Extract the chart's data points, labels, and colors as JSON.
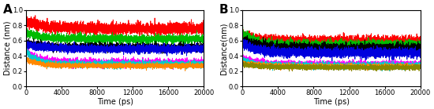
{
  "title_A": "A",
  "title_B": "B",
  "xlabel": "Time (ps)",
  "ylabel_A": "Distance (nm)",
  "ylabel_B": "Distance(nm)",
  "xlim": [
    0,
    20000
  ],
  "ylim": [
    0.0,
    1.0
  ],
  "yticks": [
    0.0,
    0.2,
    0.4,
    0.6,
    0.8,
    1.0
  ],
  "xticks": [
    0,
    4000,
    8000,
    12000,
    16000,
    20000
  ],
  "panel_A": {
    "lines": [
      {
        "mean": 0.76,
        "std": 0.07,
        "color": "#ff0000",
        "lw": 0.6
      },
      {
        "mean": 0.62,
        "std": 0.05,
        "color": "#00bb00",
        "lw": 0.6
      },
      {
        "mean": 0.51,
        "std": 0.05,
        "color": "#000000",
        "lw": 0.6
      },
      {
        "mean": 0.49,
        "std": 0.05,
        "color": "#0000dd",
        "lw": 0.6
      },
      {
        "mean": 0.31,
        "std": 0.05,
        "color": "#ff00ff",
        "lw": 0.6
      },
      {
        "mean": 0.29,
        "std": 0.04,
        "color": "#00cccc",
        "lw": 0.6
      },
      {
        "mean": 0.27,
        "std": 0.03,
        "color": "#ff8800",
        "lw": 0.6
      }
    ]
  },
  "panel_B": {
    "lines": [
      {
        "mean": 0.6,
        "std": 0.06,
        "color": "#ff0000",
        "lw": 0.6
      },
      {
        "mean": 0.54,
        "std": 0.06,
        "color": "#00bb00",
        "lw": 0.6
      },
      {
        "mean": 0.5,
        "std": 0.06,
        "color": "#000000",
        "lw": 0.6
      },
      {
        "mean": 0.44,
        "std": 0.06,
        "color": "#0000dd",
        "lw": 0.6
      },
      {
        "mean": 0.29,
        "std": 0.04,
        "color": "#ff00ff",
        "lw": 0.6
      },
      {
        "mean": 0.27,
        "std": 0.04,
        "color": "#00cccc",
        "lw": 0.6
      },
      {
        "mean": 0.26,
        "std": 0.03,
        "color": "#ff8800",
        "lw": 0.6
      },
      {
        "mean": 0.25,
        "std": 0.03,
        "color": "#888800",
        "lw": 0.6
      }
    ]
  },
  "n_points": 4001,
  "seed_A": 42,
  "seed_B": 137,
  "figsize": [
    5.5,
    1.39
  ],
  "dpi": 100,
  "tick_fontsize": 6,
  "label_fontsize": 7,
  "panel_label_fontsize": 11
}
